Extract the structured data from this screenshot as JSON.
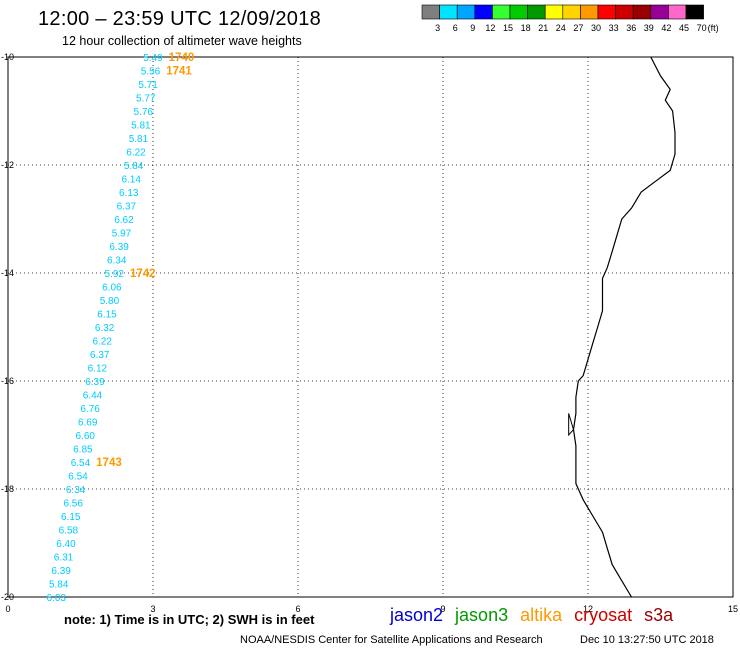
{
  "title": "12:00 – 23:59 UTC 12/09/2018",
  "subtitle": "12 hour collection of altimeter wave heights",
  "legend": {
    "unit": "(ft)",
    "bins": [
      {
        "label": "3",
        "color": "#7f7f7f"
      },
      {
        "label": "6",
        "color": "#00e5ff"
      },
      {
        "label": "9",
        "color": "#00a5ff"
      },
      {
        "label": "12",
        "color": "#0000ff"
      },
      {
        "label": "15",
        "color": "#33ff33"
      },
      {
        "label": "18",
        "color": "#00cc00"
      },
      {
        "label": "21",
        "color": "#009900"
      },
      {
        "label": "24",
        "color": "#ffff00"
      },
      {
        "label": "27",
        "color": "#ffd400"
      },
      {
        "label": "30",
        "color": "#ff9900"
      },
      {
        "label": "33",
        "color": "#ff0000"
      },
      {
        "label": "36",
        "color": "#cc0000"
      },
      {
        "label": "39",
        "color": "#990000"
      },
      {
        "label": "42",
        "color": "#990099"
      },
      {
        "label": "45",
        "color": "#ff66cc"
      },
      {
        "label": "70",
        "color": "#000000"
      }
    ]
  },
  "axes": {
    "x_ticks": [
      {
        "value": 0,
        "label": "0"
      },
      {
        "value": 3,
        "label": "3"
      },
      {
        "value": 6,
        "label": "6"
      },
      {
        "value": 9,
        "label": "9"
      },
      {
        "value": 12,
        "label": "12"
      },
      {
        "value": 15,
        "label": "15"
      }
    ],
    "y_ticks": [
      {
        "value": -10,
        "label": "-10"
      },
      {
        "value": -12,
        "label": "-12"
      },
      {
        "value": -14,
        "label": "-14"
      },
      {
        "value": -16,
        "label": "-16"
      },
      {
        "value": -18,
        "label": "-18"
      },
      {
        "value": -20,
        "label": "-20"
      }
    ],
    "x_range": [
      0,
      15
    ],
    "y_range": [
      -20,
      -10
    ],
    "grid": "dotted"
  },
  "track": {
    "color": "#00ccff",
    "points": [
      {
        "lon": 3.2,
        "lat": -10.0,
        "swh": "5.49"
      },
      {
        "lon": 3.15,
        "lat": -10.25,
        "swh": "5.56"
      },
      {
        "lon": 3.1,
        "lat": -10.5,
        "swh": "5.71"
      },
      {
        "lon": 3.05,
        "lat": -10.75,
        "swh": "5.77"
      },
      {
        "lon": 3.0,
        "lat": -11.0,
        "swh": "5.76"
      },
      {
        "lon": 2.95,
        "lat": -11.25,
        "swh": "5.81"
      },
      {
        "lon": 2.9,
        "lat": -11.5,
        "swh": "5.81"
      },
      {
        "lon": 2.85,
        "lat": -11.75,
        "swh": "6.22"
      },
      {
        "lon": 2.8,
        "lat": -12.0,
        "swh": "5.84"
      },
      {
        "lon": 2.75,
        "lat": -12.25,
        "swh": "6.14"
      },
      {
        "lon": 2.7,
        "lat": -12.5,
        "swh": "6.13"
      },
      {
        "lon": 2.65,
        "lat": -12.75,
        "swh": "6.37"
      },
      {
        "lon": 2.6,
        "lat": -13.0,
        "swh": "6.62"
      },
      {
        "lon": 2.55,
        "lat": -13.25,
        "swh": "5.97"
      },
      {
        "lon": 2.5,
        "lat": -13.5,
        "swh": "6.39"
      },
      {
        "lon": 2.45,
        "lat": -13.75,
        "swh": "6.34"
      },
      {
        "lon": 2.4,
        "lat": -14.0,
        "swh": "5.92"
      },
      {
        "lon": 2.35,
        "lat": -14.25,
        "swh": "6.06"
      },
      {
        "lon": 2.3,
        "lat": -14.5,
        "swh": "5.80"
      },
      {
        "lon": 2.25,
        "lat": -14.75,
        "swh": "6.15"
      },
      {
        "lon": 2.2,
        "lat": -15.0,
        "swh": "6.32"
      },
      {
        "lon": 2.15,
        "lat": -15.25,
        "swh": "6.22"
      },
      {
        "lon": 2.1,
        "lat": -15.5,
        "swh": "6.37"
      },
      {
        "lon": 2.05,
        "lat": -15.75,
        "swh": "6.12"
      },
      {
        "lon": 2.0,
        "lat": -16.0,
        "swh": "6.39"
      },
      {
        "lon": 1.95,
        "lat": -16.25,
        "swh": "6.44"
      },
      {
        "lon": 1.9,
        "lat": -16.5,
        "swh": "6.76"
      },
      {
        "lon": 1.85,
        "lat": -16.75,
        "swh": "6.69"
      },
      {
        "lon": 1.8,
        "lat": -17.0,
        "swh": "6.60"
      },
      {
        "lon": 1.75,
        "lat": -17.25,
        "swh": "6.85"
      },
      {
        "lon": 1.7,
        "lat": -17.5,
        "swh": "6.54"
      },
      {
        "lon": 1.65,
        "lat": -17.75,
        "swh": "6.54"
      },
      {
        "lon": 1.6,
        "lat": -18.0,
        "swh": "6.34"
      },
      {
        "lon": 1.55,
        "lat": -18.25,
        "swh": "6.56"
      },
      {
        "lon": 1.5,
        "lat": -18.5,
        "swh": "6.15"
      },
      {
        "lon": 1.45,
        "lat": -18.75,
        "swh": "6.58"
      },
      {
        "lon": 1.4,
        "lat": -19.0,
        "swh": "6.40"
      },
      {
        "lon": 1.35,
        "lat": -19.25,
        "swh": "6.31"
      },
      {
        "lon": 1.3,
        "lat": -19.5,
        "swh": "6.39"
      },
      {
        "lon": 1.25,
        "lat": -19.75,
        "swh": "5.84"
      },
      {
        "lon": 1.2,
        "lat": -20.0,
        "swh": "6.03"
      }
    ]
  },
  "time_labels": {
    "color": "#ff9900",
    "items": [
      {
        "text": "1740",
        "at": 0
      },
      {
        "text": "1741",
        "at": 1
      },
      {
        "text": "1742",
        "at": 16
      },
      {
        "text": "1743",
        "at": 30
      }
    ]
  },
  "coast": {
    "color": "#000000",
    "points": [
      [
        13.3,
        -10.0
      ],
      [
        13.5,
        -10.35
      ],
      [
        13.7,
        -10.6
      ],
      [
        13.6,
        -10.8
      ],
      [
        13.75,
        -11.0
      ],
      [
        13.8,
        -11.4
      ],
      [
        13.8,
        -11.8
      ],
      [
        13.7,
        -12.1
      ],
      [
        13.4,
        -12.3
      ],
      [
        13.1,
        -12.5
      ],
      [
        12.9,
        -12.8
      ],
      [
        12.7,
        -13.0
      ],
      [
        12.6,
        -13.3
      ],
      [
        12.5,
        -13.6
      ],
      [
        12.4,
        -13.9
      ],
      [
        12.3,
        -14.1
      ],
      [
        12.3,
        -14.4
      ],
      [
        12.3,
        -14.7
      ],
      [
        12.2,
        -15.0
      ],
      [
        12.1,
        -15.3
      ],
      [
        12.0,
        -15.6
      ],
      [
        11.9,
        -15.9
      ],
      [
        11.8,
        -16.0
      ],
      [
        11.75,
        -16.3
      ],
      [
        11.75,
        -16.6
      ],
      [
        11.7,
        -16.9
      ],
      [
        11.75,
        -17.2
      ],
      [
        11.75,
        -17.5
      ],
      [
        11.75,
        -17.9
      ],
      [
        11.9,
        -18.2
      ],
      [
        12.1,
        -18.5
      ],
      [
        12.3,
        -18.8
      ],
      [
        12.4,
        -19.1
      ],
      [
        12.5,
        -19.4
      ],
      [
        12.7,
        -19.7
      ],
      [
        12.9,
        -20.0
      ]
    ]
  },
  "notes": "note:  1) Time is in UTC;  2) SWH is in feet",
  "satellites": [
    {
      "name": "jason2",
      "color": "#0000cc"
    },
    {
      "name": "jason3",
      "color": "#009900"
    },
    {
      "name": "altika",
      "color": "#ff9900"
    },
    {
      "name": "cryosat",
      "color": "#cc0000"
    },
    {
      "name": "s3a",
      "color": "#990000"
    }
  ],
  "credit": "NOAA/NESDIS Center for Satellite Applications and Research",
  "timestamp": "Dec 10 13:27:50 UTC 2018"
}
